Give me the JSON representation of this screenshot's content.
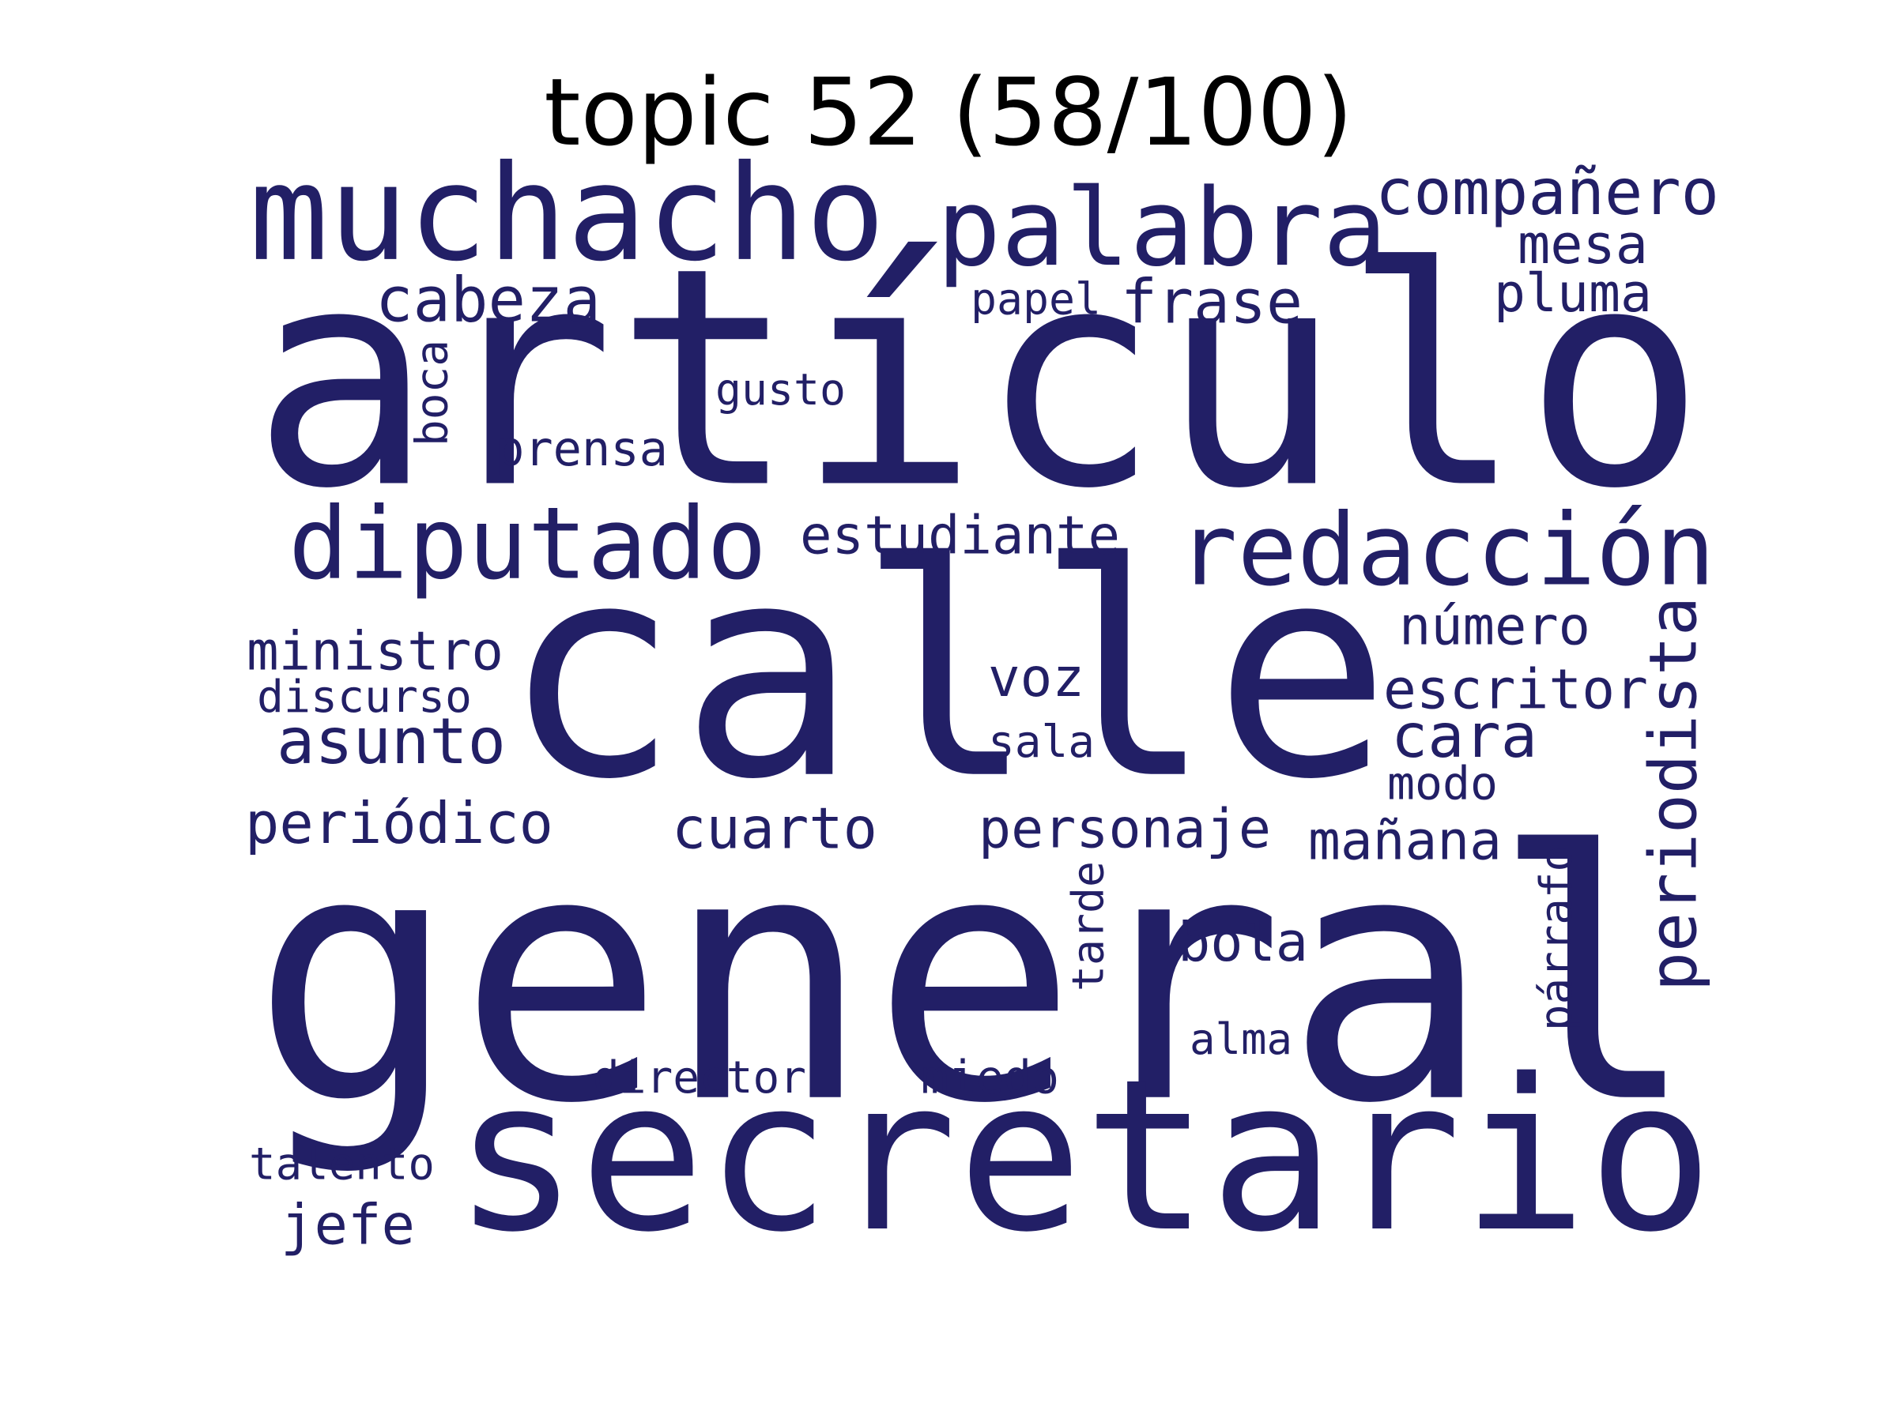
{
  "title": "topic 52 (58/100)",
  "word_color": "#221f66",
  "words": [
    {
      "text": "artículo",
      "vertical": false
    },
    {
      "text": "calle",
      "vertical": false
    },
    {
      "text": "general",
      "vertical": false
    },
    {
      "text": "secretario",
      "vertical": false
    },
    {
      "text": "muchacho",
      "vertical": false
    },
    {
      "text": "palabra",
      "vertical": false
    },
    {
      "text": "compañero",
      "vertical": false
    },
    {
      "text": "mesa",
      "vertical": false
    },
    {
      "text": "cabeza",
      "vertical": false
    },
    {
      "text": "papel",
      "vertical": false
    },
    {
      "text": "frase",
      "vertical": false
    },
    {
      "text": "pluma",
      "vertical": false
    },
    {
      "text": "boca",
      "vertical": true
    },
    {
      "text": "gusto",
      "vertical": false
    },
    {
      "text": "prensa",
      "vertical": false
    },
    {
      "text": "diputado",
      "vertical": false
    },
    {
      "text": "estudiante",
      "vertical": false
    },
    {
      "text": "redacción",
      "vertical": false
    },
    {
      "text": "número",
      "vertical": false
    },
    {
      "text": "periodista",
      "vertical": true
    },
    {
      "text": "ministro",
      "vertical": false
    },
    {
      "text": "discurso",
      "vertical": false
    },
    {
      "text": "voz",
      "vertical": false
    },
    {
      "text": "escritor",
      "vertical": false
    },
    {
      "text": "asunto",
      "vertical": false
    },
    {
      "text": "cara",
      "vertical": false
    },
    {
      "text": "sala",
      "vertical": false
    },
    {
      "text": "modo",
      "vertical": false
    },
    {
      "text": "periódico",
      "vertical": false
    },
    {
      "text": "cuarto",
      "vertical": false
    },
    {
      "text": "personaje",
      "vertical": false
    },
    {
      "text": "mañana",
      "vertical": false
    },
    {
      "text": "tarde",
      "vertical": true
    },
    {
      "text": "párrafo",
      "vertical": true
    },
    {
      "text": "bola",
      "vertical": false
    },
    {
      "text": "alma",
      "vertical": false
    },
    {
      "text": "director",
      "vertical": false
    },
    {
      "text": "miedo",
      "vertical": false
    },
    {
      "text": "talento",
      "vertical": false
    },
    {
      "text": "jefe",
      "vertical": false
    }
  ]
}
